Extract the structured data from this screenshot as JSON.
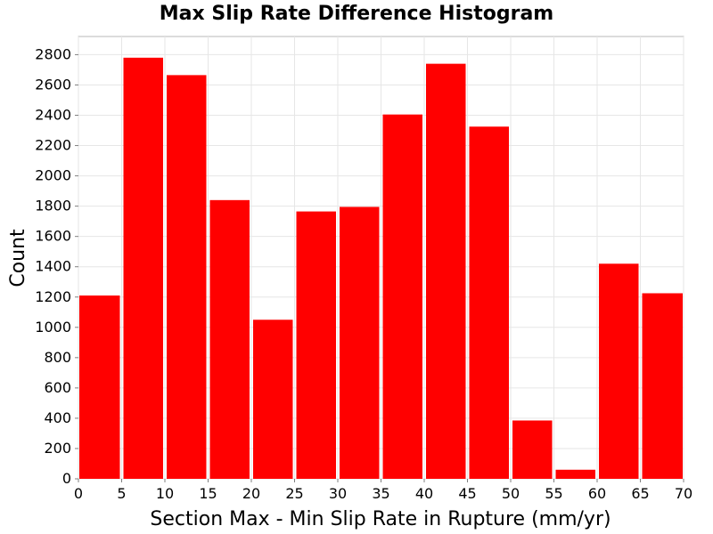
{
  "chart_data": {
    "type": "bar",
    "title": "Max Slip Rate Difference Histogram",
    "xlabel": "Section Max - Min Slip Rate in Rupture (mm/yr)",
    "ylabel": "Count",
    "bin_width": 5,
    "bins": [
      {
        "x0": 0,
        "x1": 5,
        "value": 1210
      },
      {
        "x0": 5,
        "x1": 10,
        "value": 2780
      },
      {
        "x0": 10,
        "x1": 15,
        "value": 2665
      },
      {
        "x0": 15,
        "x1": 20,
        "value": 1840
      },
      {
        "x0": 20,
        "x1": 25,
        "value": 1050
      },
      {
        "x0": 25,
        "x1": 30,
        "value": 1765
      },
      {
        "x0": 30,
        "x1": 35,
        "value": 1795
      },
      {
        "x0": 35,
        "x1": 40,
        "value": 2405
      },
      {
        "x0": 40,
        "x1": 45,
        "value": 2740
      },
      {
        "x0": 45,
        "x1": 50,
        "value": 2325
      },
      {
        "x0": 50,
        "x1": 55,
        "value": 385
      },
      {
        "x0": 55,
        "x1": 60,
        "value": 60
      },
      {
        "x0": 60,
        "x1": 65,
        "value": 1420
      },
      {
        "x0": 65,
        "x1": 70,
        "value": 1225
      }
    ],
    "xlim": [
      0,
      70
    ],
    "ylim": [
      0,
      2920
    ],
    "xticks": [
      "0",
      "5",
      "10",
      "15",
      "20",
      "25",
      "30",
      "35",
      "40",
      "45",
      "50",
      "55",
      "60",
      "65",
      "70"
    ],
    "yticks": [
      "0",
      "200",
      "400",
      "600",
      "800",
      "1000",
      "1200",
      "1400",
      "1600",
      "1800",
      "2000",
      "2200",
      "2400",
      "2600",
      "2800"
    ],
    "grid": true,
    "colors": {
      "bar": "#ff0000",
      "grid": "#e6e6e6",
      "border": "#b8b8b8",
      "text": "#000000"
    }
  }
}
